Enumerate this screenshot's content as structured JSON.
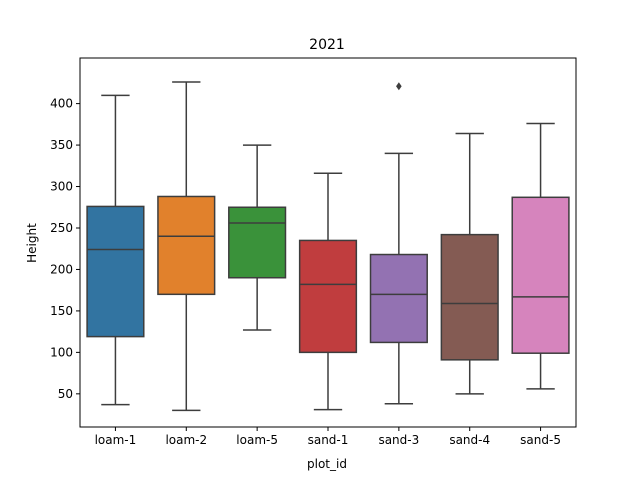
{
  "chart_data": {
    "type": "box",
    "title": "2021",
    "xlabel": "plot_id",
    "ylabel": "Height",
    "ylim": [
      10,
      455
    ],
    "yticks": [
      50,
      100,
      150,
      200,
      250,
      300,
      350,
      400
    ],
    "grid": false,
    "legend": "none",
    "categories": [
      "loam-1",
      "loam-2",
      "loam-5",
      "sand-1",
      "sand-3",
      "sand-4",
      "sand-5"
    ],
    "boxes": [
      {
        "category": "loam-1",
        "whisker_low": 37,
        "q1": 119,
        "median": 224,
        "q3": 276,
        "whisker_high": 410,
        "outliers": [],
        "color": "#3274a1"
      },
      {
        "category": "loam-2",
        "whisker_low": 30,
        "q1": 170,
        "median": 240,
        "q3": 288,
        "whisker_high": 426,
        "outliers": [],
        "color": "#e1812c"
      },
      {
        "category": "loam-5",
        "whisker_low": 127,
        "q1": 190,
        "median": 256,
        "q3": 275,
        "whisker_high": 350,
        "outliers": [],
        "color": "#3a923a"
      },
      {
        "category": "sand-1",
        "whisker_low": 31,
        "q1": 100,
        "median": 182,
        "q3": 235,
        "whisker_high": 316,
        "outliers": [],
        "color": "#c03d3e"
      },
      {
        "category": "sand-3",
        "whisker_low": 38,
        "q1": 112,
        "median": 170,
        "q3": 218,
        "whisker_high": 340,
        "outliers": [
          421
        ],
        "color": "#9372b2"
      },
      {
        "category": "sand-4",
        "whisker_low": 50,
        "q1": 91,
        "median": 159,
        "q3": 242,
        "whisker_high": 364,
        "outliers": [],
        "color": "#845b53"
      },
      {
        "category": "sand-5",
        "whisker_low": 56,
        "q1": 99,
        "median": 167,
        "q3": 287,
        "whisker_high": 376,
        "outliers": [],
        "color": "#d684bd"
      }
    ],
    "line_color": "#3d3d3d"
  }
}
